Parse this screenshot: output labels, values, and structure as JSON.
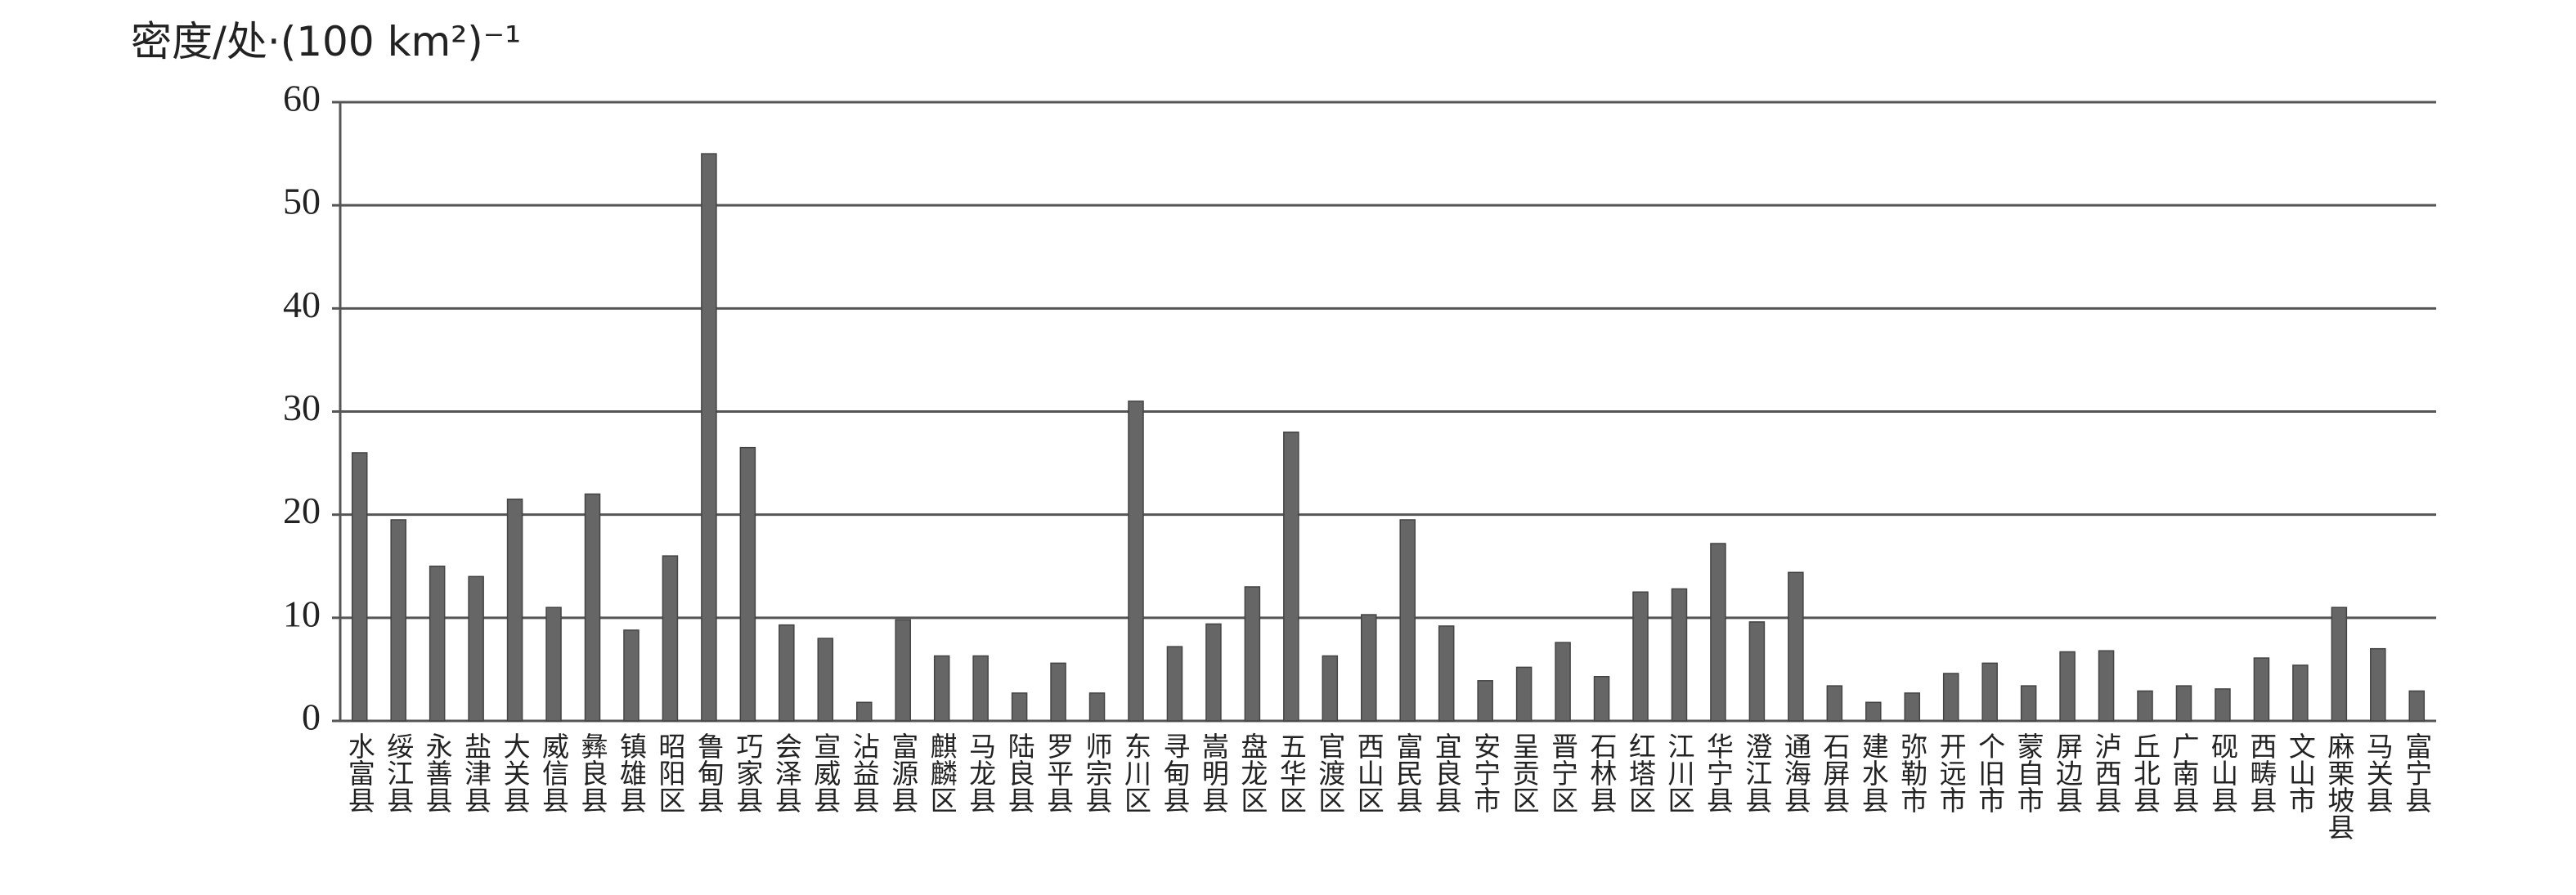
{
  "chart_data": {
    "type": "bar",
    "y_label": "密度/处·(100 km²)⁻¹",
    "categories": [
      "水富县",
      "绥江县",
      "永善县",
      "盐津县",
      "大关县",
      "威信县",
      "彝良县",
      "镇雄县",
      "昭阳区",
      "鲁甸县",
      "巧家县",
      "会泽县",
      "宣威县",
      "沾益县",
      "富源县",
      "麒麟区",
      "马龙县",
      "陆良县",
      "罗平县",
      "师宗县",
      "东川区",
      "寻甸县",
      "嵩明县",
      "盘龙区",
      "五华区",
      "官渡区",
      "西山区",
      "富民县",
      "宜良县",
      "安宁市",
      "呈贡区",
      "晋宁区",
      "石林县",
      "红塔区",
      "江川区",
      "华宁县",
      "澄江县",
      "通海县",
      "石屏县",
      "建水县",
      "弥勒市",
      "开远市",
      "个旧市",
      "蒙自市",
      "屏边县",
      "泸西县",
      "丘北县",
      "广南县",
      "砚山县",
      "西畴县",
      "文山市",
      "麻栗坡县",
      "马关县",
      "富宁县"
    ],
    "values": [
      26,
      19.5,
      15,
      14,
      21.5,
      11,
      22,
      8.8,
      16,
      55,
      26.5,
      9.3,
      8,
      1.8,
      9.8,
      6.3,
      6.3,
      2.7,
      5.6,
      2.7,
      31,
      7.2,
      9.4,
      13,
      28,
      6.3,
      10.3,
      19.5,
      9.2,
      3.9,
      5.2,
      7.6,
      4.3,
      12.5,
      12.8,
      17.2,
      9.6,
      14.4,
      3.4,
      1.8,
      2.7,
      4.6,
      5.6,
      3.4,
      6.7,
      6.8,
      2.9,
      3.4,
      3.1,
      6.1,
      5.4,
      11,
      7,
      2.9
    ],
    "color": "#666666",
    "ylim": [
      0,
      60
    ],
    "yticks": [
      0,
      10,
      20,
      30,
      40,
      50,
      60
    ],
    "grid": true
  }
}
